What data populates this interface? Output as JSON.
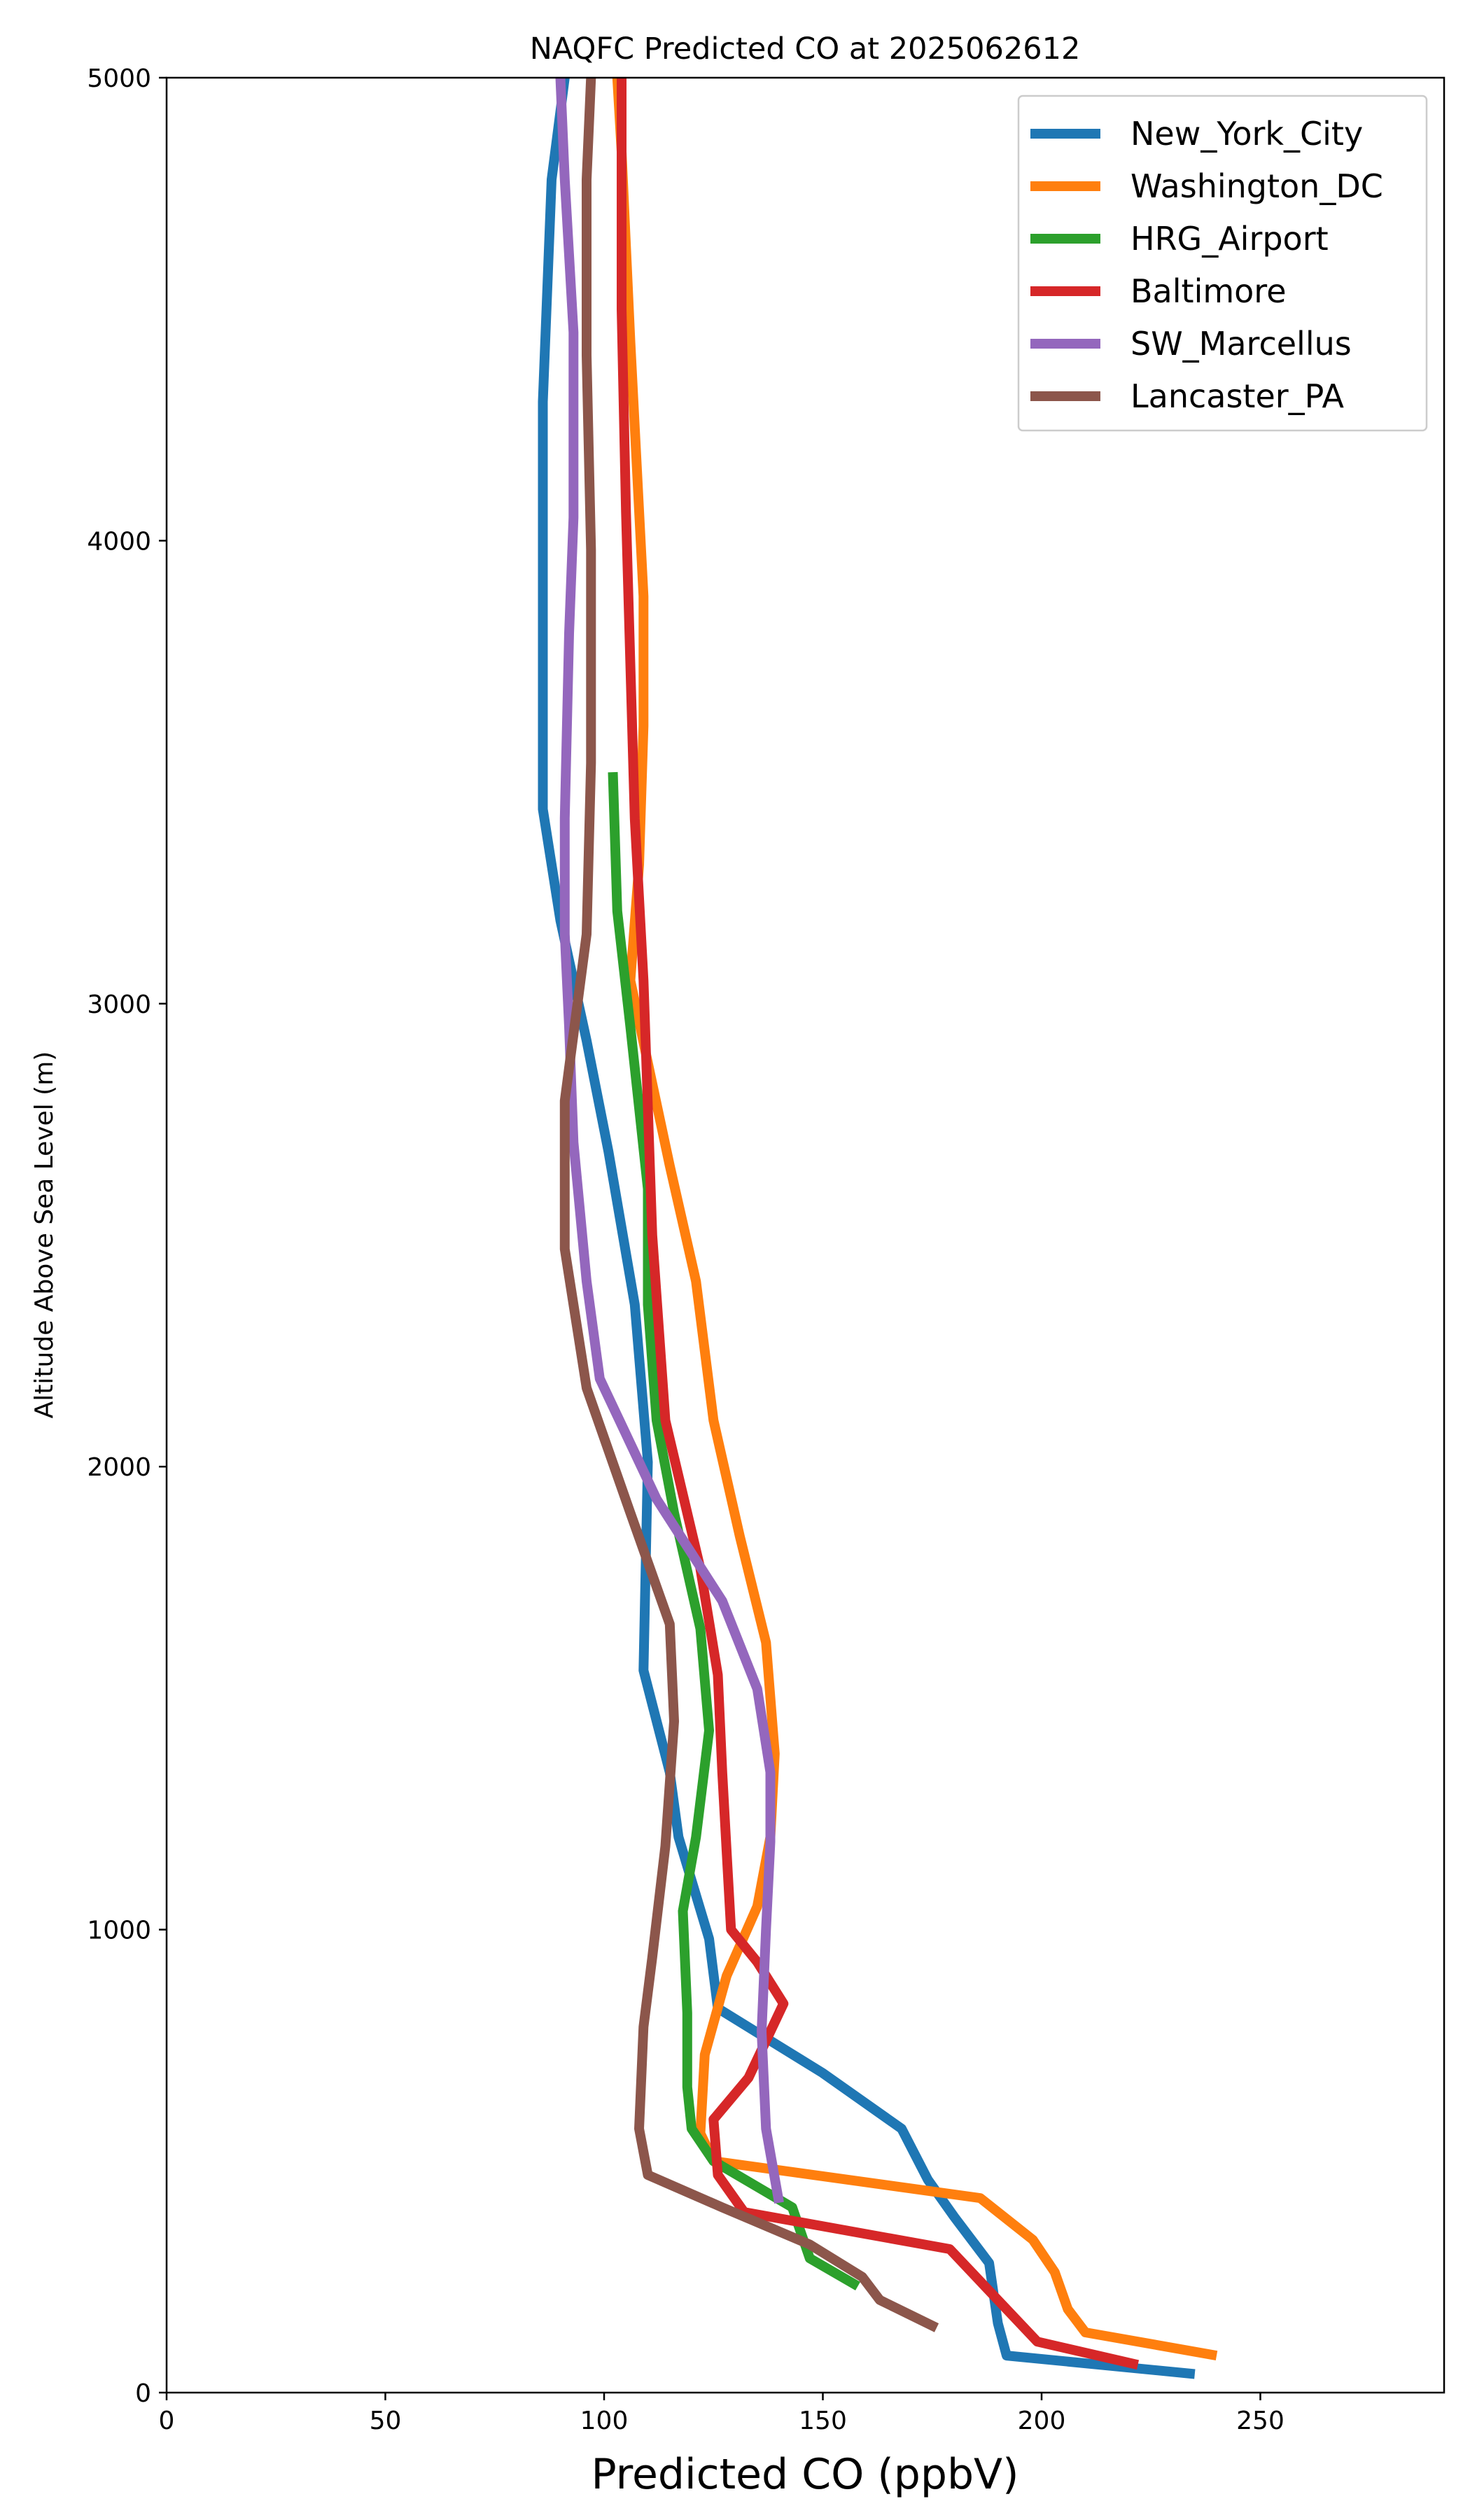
{
  "chart_data": {
    "type": "line",
    "title": "NAQFC Predicted CO at 2025062612",
    "xlabel": "Predicted CO (ppbV)",
    "ylabel": "Altitude Above Sea Level (m)",
    "xlim": [
      0,
      292
    ],
    "ylim": [
      0,
      5000
    ],
    "xticks": [
      "0",
      "50",
      "100",
      "150",
      "200",
      "250"
    ],
    "yticks": [
      "0",
      "1000",
      "2000",
      "3000",
      "4000",
      "5000"
    ],
    "grid": false,
    "legend_position": "top-right",
    "series": [
      {
        "name": "New_York_City",
        "color": "#1f77b4",
        "points": [
          [
            235,
            40
          ],
          [
            192,
            80
          ],
          [
            190,
            150
          ],
          [
            188,
            280
          ],
          [
            180,
            380
          ],
          [
            174,
            460
          ],
          [
            168,
            570
          ],
          [
            150,
            690
          ],
          [
            126,
            830
          ],
          [
            124,
            980
          ],
          [
            117,
            1200
          ],
          [
            115,
            1340
          ],
          [
            109,
            1560
          ],
          [
            110,
            2010
          ],
          [
            107,
            2350
          ],
          [
            101,
            2680
          ],
          [
            96,
            2920
          ],
          [
            90,
            3180
          ],
          [
            86,
            3420
          ],
          [
            86,
            3830
          ],
          [
            86,
            4300
          ],
          [
            88,
            4780
          ],
          [
            91,
            5000
          ]
        ]
      },
      {
        "name": "Washington_DC",
        "color": "#ff7f0e",
        "points": [
          [
            240,
            80
          ],
          [
            210,
            130
          ],
          [
            206,
            180
          ],
          [
            203,
            260
          ],
          [
            198,
            330
          ],
          [
            186,
            420
          ],
          [
            125,
            500
          ],
          [
            122,
            560
          ],
          [
            123,
            730
          ],
          [
            128,
            900
          ],
          [
            135,
            1050
          ],
          [
            138,
            1200
          ],
          [
            139,
            1380
          ],
          [
            137,
            1620
          ],
          [
            131,
            1850
          ],
          [
            125,
            2100
          ],
          [
            121,
            2400
          ],
          [
            115,
            2650
          ],
          [
            106,
            3050
          ],
          [
            108,
            3300
          ],
          [
            109,
            3600
          ],
          [
            109,
            3880
          ],
          [
            106,
            4430
          ],
          [
            104,
            4840
          ],
          [
            103,
            5000
          ]
        ]
      },
      {
        "name": "HRG_Airport",
        "color": "#2ca02c",
        "points": [
          [
            158,
            230
          ],
          [
            147,
            290
          ],
          [
            143,
            400
          ],
          [
            125,
            500
          ],
          [
            120,
            570
          ],
          [
            119,
            660
          ],
          [
            119,
            820
          ],
          [
            118,
            1040
          ],
          [
            121,
            1200
          ],
          [
            124,
            1430
          ],
          [
            122,
            1650
          ],
          [
            116,
            1900
          ],
          [
            112,
            2100
          ],
          [
            110,
            2350
          ],
          [
            110,
            2600
          ],
          [
            106,
            2950
          ],
          [
            103,
            3200
          ],
          [
            102,
            3500
          ]
        ]
      },
      {
        "name": "Baltimore",
        "color": "#d62728",
        "points": [
          [
            222,
            60
          ],
          [
            199,
            110
          ],
          [
            179,
            310
          ],
          [
            132,
            390
          ],
          [
            126,
            470
          ],
          [
            125,
            590
          ],
          [
            133,
            680
          ],
          [
            141,
            840
          ],
          [
            135,
            930
          ],
          [
            129,
            1000
          ],
          [
            128,
            1170
          ],
          [
            127,
            1340
          ],
          [
            126,
            1550
          ],
          [
            122,
            1780
          ],
          [
            118,
            1940
          ],
          [
            114,
            2100
          ],
          [
            111,
            2500
          ],
          [
            109,
            3050
          ],
          [
            107,
            3400
          ],
          [
            105,
            4060
          ],
          [
            104,
            4500
          ],
          [
            104,
            4800
          ],
          [
            104,
            5000
          ]
        ]
      },
      {
        "name": "SW_Marcellus",
        "color": "#9467bd",
        "points": [
          [
            140,
            410
          ],
          [
            137,
            570
          ],
          [
            136,
            780
          ],
          [
            137,
            1000
          ],
          [
            138,
            1190
          ],
          [
            138,
            1340
          ],
          [
            135,
            1520
          ],
          [
            127,
            1710
          ],
          [
            112,
            1930
          ],
          [
            106,
            2050
          ],
          [
            99,
            2190
          ],
          [
            96,
            2400
          ],
          [
            93,
            2700
          ],
          [
            92,
            2950
          ],
          [
            91,
            3150
          ],
          [
            91,
            3400
          ],
          [
            92,
            3800
          ],
          [
            93,
            4050
          ],
          [
            93,
            4450
          ],
          [
            91,
            4780
          ],
          [
            90,
            5000
          ]
        ]
      },
      {
        "name": "Lancaster_PA",
        "color": "#8c564b",
        "points": [
          [
            176,
            140
          ],
          [
            163,
            200
          ],
          [
            159,
            250
          ],
          [
            147,
            320
          ],
          [
            127,
            400
          ],
          [
            110,
            470
          ],
          [
            108,
            570
          ],
          [
            109,
            790
          ],
          [
            111,
            940
          ],
          [
            114,
            1180
          ],
          [
            116,
            1450
          ],
          [
            115,
            1660
          ],
          [
            106,
            1900
          ],
          [
            96,
            2170
          ],
          [
            91,
            2470
          ],
          [
            91,
            2790
          ],
          [
            96,
            3150
          ],
          [
            97,
            3520
          ],
          [
            97,
            3980
          ],
          [
            96,
            4400
          ],
          [
            96,
            4780
          ],
          [
            97,
            5000
          ]
        ]
      }
    ]
  }
}
